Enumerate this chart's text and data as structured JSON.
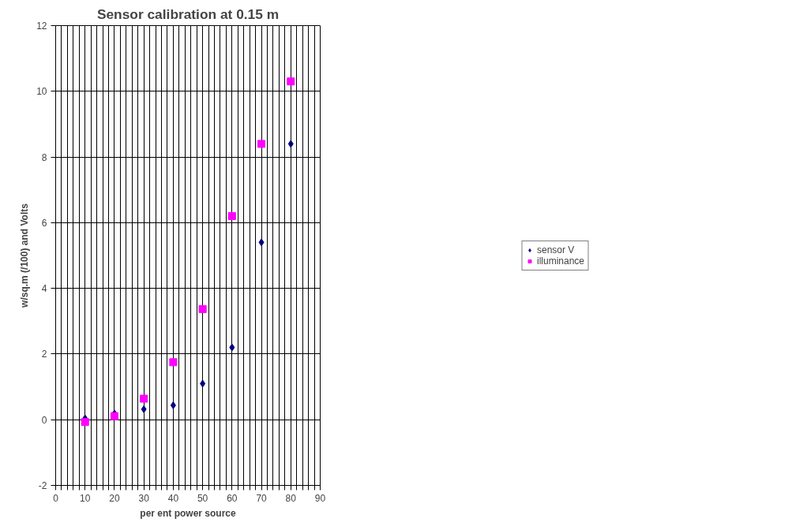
{
  "chart_data": {
    "type": "scatter",
    "title": "Sensor calibration at 0.15 m",
    "xlabel": "per ent power source",
    "ylabel": "w/sq.m (/100) and Volts",
    "series": [
      {
        "name": "sensor V",
        "color": "#000080",
        "marker": "diamond",
        "x": [
          10,
          20,
          30,
          40,
          50,
          60,
          70,
          80
        ],
        "values": [
          0.04,
          0.19,
          0.32,
          0.44,
          1.1,
          2.2,
          5.4,
          8.4
        ]
      },
      {
        "name": "illuminance",
        "color": "#ff00ff",
        "marker": "square",
        "x": [
          10,
          20,
          30,
          40,
          50,
          60,
          70,
          80
        ],
        "values": [
          -0.07,
          0.11,
          0.64,
          1.75,
          3.37,
          6.2,
          8.4,
          10.3
        ]
      }
    ],
    "xlim": [
      0,
      90
    ],
    "ylim": [
      -2,
      12
    ],
    "xticks": [
      0,
      {
        "value": 2,
        "label": null
      },
      {
        "value": 4,
        "label": null
      },
      {
        "value": 6,
        "label": null
      },
      {
        "value": 8,
        "label": null
      },
      10,
      {
        "value": 12,
        "label": null
      },
      {
        "value": 14,
        "label": null
      },
      {
        "value": 16,
        "label": null
      },
      {
        "value": 18,
        "label": null
      },
      20,
      {
        "value": 22,
        "label": null
      },
      {
        "value": 24,
        "label": null
      },
      {
        "value": 26,
        "label": null
      },
      {
        "value": 28,
        "label": null
      },
      30,
      {
        "value": 32,
        "label": null
      },
      {
        "value": 34,
        "label": null
      },
      {
        "value": 36,
        "label": null
      },
      {
        "value": 38,
        "label": null
      },
      40,
      {
        "value": 42,
        "label": null
      },
      {
        "value": 44,
        "label": null
      },
      {
        "value": 46,
        "label": null
      },
      {
        "value": 48,
        "label": null
      },
      50,
      {
        "value": 52,
        "label": null
      },
      {
        "value": 54,
        "label": null
      },
      {
        "value": 56,
        "label": null
      },
      {
        "value": 58,
        "label": null
      },
      60,
      {
        "value": 62,
        "label": null
      },
      {
        "value": 64,
        "label": null
      },
      {
        "value": 66,
        "label": null
      },
      {
        "value": 68,
        "label": null
      },
      70,
      {
        "value": 72,
        "label": null
      },
      {
        "value": 74,
        "label": null
      },
      {
        "value": 76,
        "label": null
      },
      {
        "value": 78,
        "label": null
      },
      80,
      {
        "value": 82,
        "label": null
      },
      {
        "value": 84,
        "label": null
      },
      {
        "value": 86,
        "label": null
      },
      {
        "value": 88,
        "label": null
      },
      90
    ],
    "yticks": [
      -2,
      0,
      2,
      4,
      6,
      8,
      10,
      12
    ],
    "grid": true,
    "legend": "right"
  }
}
